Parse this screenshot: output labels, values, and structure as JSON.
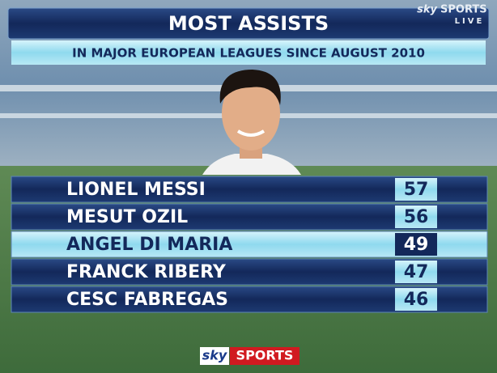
{
  "header": {
    "title": "MOST ASSISTS",
    "subtitle": "IN MAJOR EUROPEAN LEAGUES SINCE AUGUST 2010"
  },
  "table": {
    "rows": [
      [
        "LIONEL MESSI",
        "57"
      ],
      [
        "MESUT OZIL",
        "56"
      ],
      [
        "ANGEL DI MARIA",
        "49"
      ],
      [
        "FRANCK RIBERY",
        "47"
      ],
      [
        "CESC FABREGAS",
        "46"
      ]
    ],
    "highlight": 2
  },
  "watermark": {
    "brand": "sky",
    "channel": "SPORTS",
    "status": "LIVE"
  },
  "logo": {
    "brand": "sky",
    "channel": "SPORTS"
  }
}
